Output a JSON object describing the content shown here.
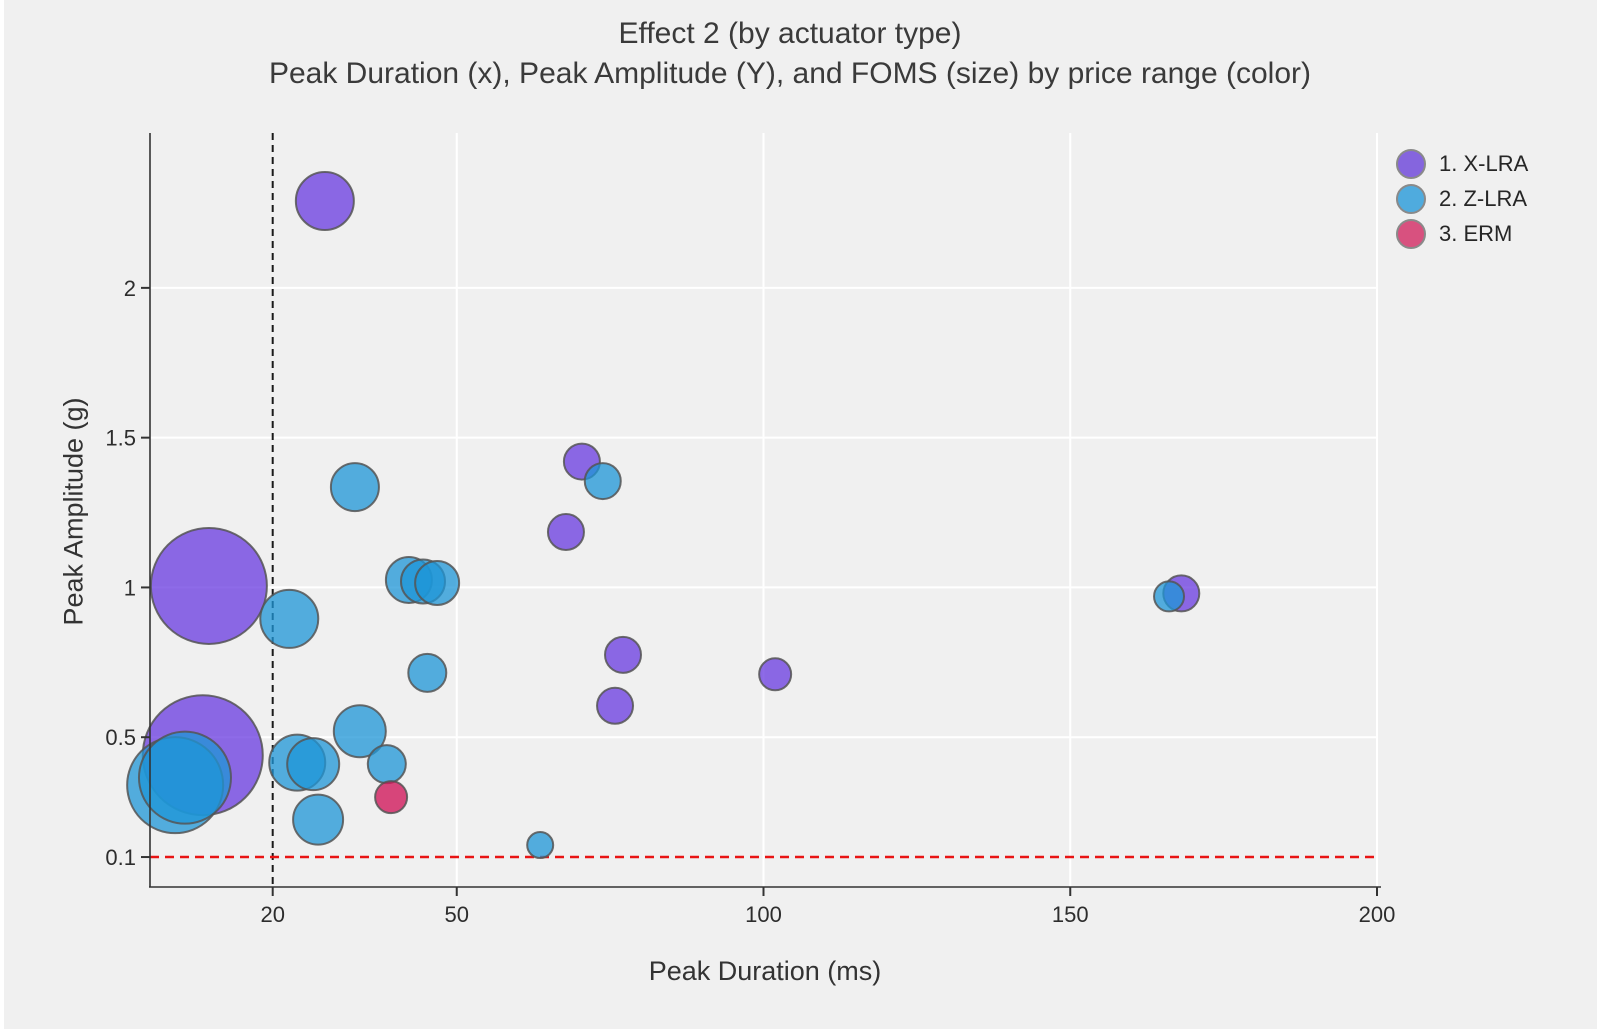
{
  "title": {
    "line1": "Effect 2 (by actuator type)",
    "line2": "Peak Duration (x), Peak Amplitude (Y), and FOMS (size) by price range (color)"
  },
  "chart_data": {
    "type": "scatter",
    "subtype": "bubble",
    "title": "Effect 2 (by actuator type)",
    "subtitle": "Peak Duration (x), Peak Amplitude (Y), and FOMS (size) by price range (color)",
    "xlabel": "Peak Duration (ms)",
    "ylabel": "Peak Amplitude (g)",
    "xlim": [
      0,
      200
    ],
    "ylim": [
      0,
      2.517
    ],
    "x_ticks": [
      20,
      50,
      100,
      150,
      200
    ],
    "y_ticks": [
      0.1,
      0.5,
      1,
      1.5,
      2
    ],
    "x_gridlines": [
      50,
      100,
      150,
      200
    ],
    "y_gridlines": [
      0.5,
      1,
      1.5,
      2
    ],
    "grid_on": true,
    "grid_color": "#ffffff",
    "background_color": "#f0f0f0",
    "size_meaning": "FOMS",
    "reference_lines": {
      "vline": {
        "x": 20,
        "style": "dashed",
        "color": "#1a1a1a"
      },
      "hline": {
        "y": 0.1,
        "style": "dashed",
        "color": "#e81414"
      }
    },
    "legend_position": "top-right",
    "series": [
      {
        "name": "1. X-LRA",
        "fill": "rgba(104,57,224,0.75)",
        "stroke": "rgba(85,85,85,0.85)",
        "legend_color": "#8565de",
        "points": [
          {
            "x": 9.6,
            "y": 1.005,
            "r": 58
          },
          {
            "x": 8.6,
            "y": 0.44,
            "r": 60
          },
          {
            "x": 28.5,
            "y": 2.29,
            "r": 29
          },
          {
            "x": 70.4,
            "y": 1.42,
            "r": 18
          },
          {
            "x": 67.8,
            "y": 1.185,
            "r": 18
          },
          {
            "x": 77.1,
            "y": 0.775,
            "r": 18
          },
          {
            "x": 75.8,
            "y": 0.605,
            "r": 18
          },
          {
            "x": 101.9,
            "y": 0.71,
            "r": 16
          },
          {
            "x": 168.1,
            "y": 0.98,
            "r": 18
          }
        ]
      },
      {
        "name": "2. Z-LRA",
        "fill": "rgba(29,149,215,0.75)",
        "stroke": "rgba(85,85,85,0.85)",
        "legend_color": "#4fabde",
        "points": [
          {
            "x": 4.1,
            "y": 0.34,
            "r": 48
          },
          {
            "x": 5.7,
            "y": 0.365,
            "r": 46
          },
          {
            "x": 22.7,
            "y": 0.895,
            "r": 29
          },
          {
            "x": 33.4,
            "y": 1.335,
            "r": 24
          },
          {
            "x": 42.2,
            "y": 1.025,
            "r": 23
          },
          {
            "x": 44.5,
            "y": 1.02,
            "r": 22
          },
          {
            "x": 46.8,
            "y": 1.015,
            "r": 22
          },
          {
            "x": 45.2,
            "y": 0.715,
            "r": 19
          },
          {
            "x": 34.2,
            "y": 0.52,
            "r": 26
          },
          {
            "x": 24.0,
            "y": 0.415,
            "r": 28
          },
          {
            "x": 26.6,
            "y": 0.41,
            "r": 26
          },
          {
            "x": 38.6,
            "y": 0.41,
            "r": 19
          },
          {
            "x": 27.4,
            "y": 0.225,
            "r": 25
          },
          {
            "x": 63.6,
            "y": 0.14,
            "r": 13
          },
          {
            "x": 73.8,
            "y": 1.355,
            "r": 18
          },
          {
            "x": 166.1,
            "y": 0.97,
            "r": 15
          }
        ]
      },
      {
        "name": "3. ERM",
        "fill": "rgba(208,21,88,0.78)",
        "stroke": "rgba(85,85,85,0.85)",
        "legend_color": "#d8517f",
        "points": [
          {
            "x": 39.3,
            "y": 0.3,
            "r": 16
          }
        ]
      }
    ]
  },
  "colors": {
    "page_bg": "#ffffff",
    "figure_bg": "#f0f0f0",
    "spine": "#333333",
    "tick_label": "#2d2d2d",
    "title_text": "#3a3a3a"
  }
}
